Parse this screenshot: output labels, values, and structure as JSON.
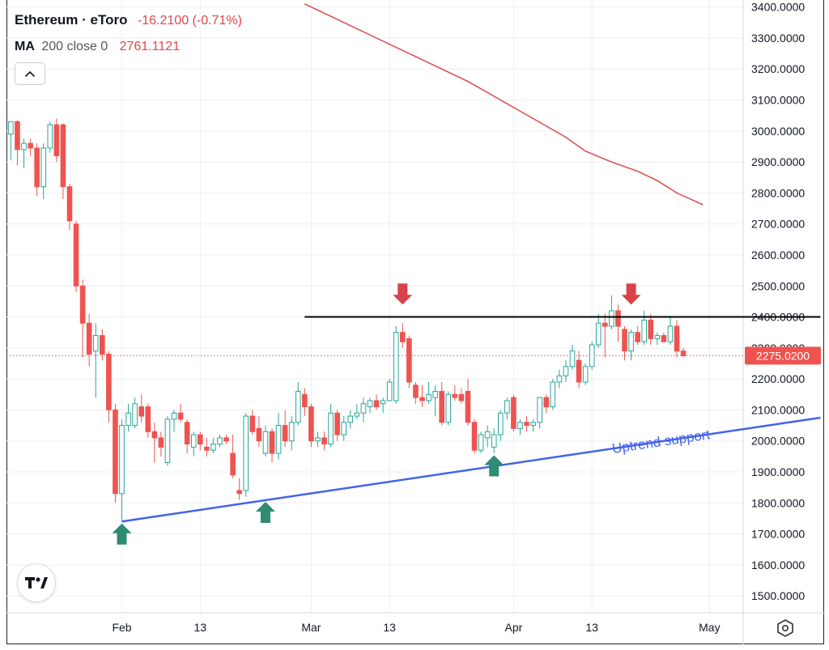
{
  "header": {
    "symbol": "Ethereum · eToro",
    "change": "-16.2100 (-0.71%)",
    "ma_label": "MA",
    "ma_params": "200 close 0",
    "ma_value": "2761.1121"
  },
  "icons": {
    "collapse": "chevron-up-icon",
    "logo": "tradingview-logo-icon",
    "settings": "settings-hexagon-icon"
  },
  "colors": {
    "up": "#26a69a",
    "down": "#ef5350",
    "ma": "#e0474c",
    "support": "#4263eb",
    "resistance": "#000000",
    "price_tag": "#ef5350",
    "arrow_up": "#2e8b74",
    "arrow_down": "#d94249"
  },
  "chart_data": {
    "type": "candlestick",
    "title": "Ethereum · eToro",
    "xlabel": "",
    "ylabel": "",
    "ylim": [
      1440,
      3410
    ],
    "y_ticks": [
      "1500.0000",
      "1600.0000",
      "1700.0000",
      "1800.0000",
      "1900.0000",
      "2000.0000",
      "2100.0000",
      "2200.0000",
      "2300.0000",
      "2400.0000",
      "2500.0000",
      "2600.0000",
      "2700.0000",
      "2800.0000",
      "2900.0000",
      "3000.0000",
      "3100.0000",
      "3200.0000",
      "3300.0000",
      "3400.0000"
    ],
    "x_ticks": [
      {
        "label": "Feb",
        "day": 17
      },
      {
        "label": "13",
        "day": 29
      },
      {
        "label": "Mar",
        "day": 46
      },
      {
        "label": "13",
        "day": 58
      },
      {
        "label": "Apr",
        "day": 77
      },
      {
        "label": "13",
        "day": 89
      },
      {
        "label": "May",
        "day": 107
      }
    ],
    "last_price": "2275.0200",
    "last_price_value": 2275.02,
    "candles": [
      {
        "d": 0,
        "o": 2990,
        "h": 3020,
        "l": 2905,
        "c": 3030
      },
      {
        "d": 1,
        "o": 3030,
        "h": 3035,
        "l": 2890,
        "c": 2940
      },
      {
        "d": 2,
        "o": 2940,
        "h": 2975,
        "l": 2880,
        "c": 2960
      },
      {
        "d": 3,
        "o": 2960,
        "h": 2975,
        "l": 2920,
        "c": 2945
      },
      {
        "d": 4,
        "o": 2945,
        "h": 2960,
        "l": 2790,
        "c": 2820
      },
      {
        "d": 5,
        "o": 2820,
        "h": 2960,
        "l": 2780,
        "c": 2945
      },
      {
        "d": 6,
        "o": 2945,
        "h": 3030,
        "l": 2930,
        "c": 3020
      },
      {
        "d": 7,
        "o": 3020,
        "h": 3040,
        "l": 2900,
        "c": 2920
      },
      {
        "d": 8,
        "o": 3020,
        "h": 3025,
        "l": 2780,
        "c": 2820
      },
      {
        "d": 9,
        "o": 2820,
        "h": 2830,
        "l": 2680,
        "c": 2710
      },
      {
        "d": 10,
        "o": 2700,
        "h": 2710,
        "l": 2480,
        "c": 2500
      },
      {
        "d": 11,
        "o": 2500,
        "h": 2520,
        "l": 2270,
        "c": 2380
      },
      {
        "d": 12,
        "o": 2380,
        "h": 2410,
        "l": 2240,
        "c": 2280
      },
      {
        "d": 13,
        "o": 2290,
        "h": 2380,
        "l": 2140,
        "c": 2340
      },
      {
        "d": 14,
        "o": 2340,
        "h": 2360,
        "l": 2260,
        "c": 2280
      },
      {
        "d": 15,
        "o": 2280,
        "h": 2290,
        "l": 2060,
        "c": 2100
      },
      {
        "d": 16,
        "o": 2100,
        "h": 2120,
        "l": 1800,
        "c": 1830
      },
      {
        "d": 17,
        "o": 1830,
        "h": 2070,
        "l": 1740,
        "c": 2050
      },
      {
        "d": 18,
        "o": 2050,
        "h": 2120,
        "l": 2030,
        "c": 2090
      },
      {
        "d": 19,
        "o": 2050,
        "h": 2140,
        "l": 2040,
        "c": 2120
      },
      {
        "d": 20,
        "o": 2110,
        "h": 2150,
        "l": 2060,
        "c": 2080
      },
      {
        "d": 21,
        "o": 2110,
        "h": 2120,
        "l": 2010,
        "c": 2030
      },
      {
        "d": 22,
        "o": 2030,
        "h": 2060,
        "l": 1930,
        "c": 2010
      },
      {
        "d": 23,
        "o": 2010,
        "h": 2030,
        "l": 1950,
        "c": 1980
      },
      {
        "d": 24,
        "o": 1930,
        "h": 2080,
        "l": 1920,
        "c": 2070
      },
      {
        "d": 25,
        "o": 2070,
        "h": 2100,
        "l": 2030,
        "c": 2090
      },
      {
        "d": 26,
        "o": 2090,
        "h": 2120,
        "l": 2060,
        "c": 2070
      },
      {
        "d": 27,
        "o": 2060,
        "h": 2070,
        "l": 1960,
        "c": 1990
      },
      {
        "d": 28,
        "o": 1980,
        "h": 2030,
        "l": 1950,
        "c": 2020
      },
      {
        "d": 29,
        "o": 2020,
        "h": 2030,
        "l": 1970,
        "c": 1990
      },
      {
        "d": 30,
        "o": 1980,
        "h": 2010,
        "l": 1950,
        "c": 1970
      },
      {
        "d": 31,
        "o": 1970,
        "h": 2010,
        "l": 1960,
        "c": 1990
      },
      {
        "d": 32,
        "o": 1990,
        "h": 2020,
        "l": 1980,
        "c": 2010
      },
      {
        "d": 33,
        "o": 2010,
        "h": 2020,
        "l": 1990,
        "c": 2000
      },
      {
        "d": 34,
        "o": 1960,
        "h": 2020,
        "l": 1880,
        "c": 1890
      },
      {
        "d": 35,
        "o": 1840,
        "h": 1880,
        "l": 1810,
        "c": 1830
      },
      {
        "d": 36,
        "o": 1840,
        "h": 2090,
        "l": 1820,
        "c": 2080
      },
      {
        "d": 37,
        "o": 2080,
        "h": 2100,
        "l": 2020,
        "c": 2030
      },
      {
        "d": 38,
        "o": 2040,
        "h": 2080,
        "l": 1980,
        "c": 2000
      },
      {
        "d": 39,
        "o": 1960,
        "h": 2050,
        "l": 1950,
        "c": 2030
      },
      {
        "d": 40,
        "o": 2030,
        "h": 2040,
        "l": 1930,
        "c": 1960
      },
      {
        "d": 41,
        "o": 1960,
        "h": 2090,
        "l": 1940,
        "c": 2050
      },
      {
        "d": 42,
        "o": 2050,
        "h": 2100,
        "l": 1980,
        "c": 2000
      },
      {
        "d": 43,
        "o": 2000,
        "h": 2080,
        "l": 1970,
        "c": 2060
      },
      {
        "d": 44,
        "o": 2060,
        "h": 2190,
        "l": 2050,
        "c": 2160
      },
      {
        "d": 45,
        "o": 2150,
        "h": 2170,
        "l": 2080,
        "c": 2110
      },
      {
        "d": 46,
        "o": 2110,
        "h": 2120,
        "l": 1980,
        "c": 2000
      },
      {
        "d": 47,
        "o": 2000,
        "h": 2030,
        "l": 1980,
        "c": 2010
      },
      {
        "d": 48,
        "o": 2010,
        "h": 2030,
        "l": 1970,
        "c": 1990
      },
      {
        "d": 49,
        "o": 1990,
        "h": 2120,
        "l": 1980,
        "c": 2090
      },
      {
        "d": 50,
        "o": 2090,
        "h": 2100,
        "l": 2000,
        "c": 2020
      },
      {
        "d": 51,
        "o": 2020,
        "h": 2080,
        "l": 2000,
        "c": 2060
      },
      {
        "d": 52,
        "o": 2060,
        "h": 2100,
        "l": 2040,
        "c": 2080
      },
      {
        "d": 53,
        "o": 2080,
        "h": 2120,
        "l": 2070,
        "c": 2090
      },
      {
        "d": 54,
        "o": 2090,
        "h": 2140,
        "l": 2060,
        "c": 2120
      },
      {
        "d": 55,
        "o": 2110,
        "h": 2140,
        "l": 2090,
        "c": 2130
      },
      {
        "d": 56,
        "o": 2130,
        "h": 2150,
        "l": 2100,
        "c": 2110
      },
      {
        "d": 57,
        "o": 2120,
        "h": 2140,
        "l": 2090,
        "c": 2130
      },
      {
        "d": 58,
        "o": 2130,
        "h": 2200,
        "l": 2130,
        "c": 2190
      },
      {
        "d": 59,
        "o": 2130,
        "h": 2370,
        "l": 2120,
        "c": 2350
      },
      {
        "d": 60,
        "o": 2350,
        "h": 2380,
        "l": 2300,
        "c": 2320
      },
      {
        "d": 61,
        "o": 2330,
        "h": 2340,
        "l": 2170,
        "c": 2190
      },
      {
        "d": 62,
        "o": 2180,
        "h": 2190,
        "l": 2120,
        "c": 2140
      },
      {
        "d": 63,
        "o": 2140,
        "h": 2180,
        "l": 2110,
        "c": 2130
      },
      {
        "d": 64,
        "o": 2130,
        "h": 2190,
        "l": 2120,
        "c": 2150
      },
      {
        "d": 65,
        "o": 2140,
        "h": 2180,
        "l": 2080,
        "c": 2160
      },
      {
        "d": 66,
        "o": 2160,
        "h": 2190,
        "l": 2050,
        "c": 2060
      },
      {
        "d": 67,
        "o": 2060,
        "h": 2160,
        "l": 2050,
        "c": 2150
      },
      {
        "d": 68,
        "o": 2150,
        "h": 2180,
        "l": 2130,
        "c": 2140
      },
      {
        "d": 69,
        "o": 2150,
        "h": 2170,
        "l": 2120,
        "c": 2130
      },
      {
        "d": 70,
        "o": 2160,
        "h": 2200,
        "l": 2050,
        "c": 2060
      },
      {
        "d": 71,
        "o": 2060,
        "h": 2070,
        "l": 1960,
        "c": 1970
      },
      {
        "d": 72,
        "o": 1970,
        "h": 2030,
        "l": 1960,
        "c": 2020
      },
      {
        "d": 73,
        "o": 2010,
        "h": 2050,
        "l": 1980,
        "c": 2030
      },
      {
        "d": 74,
        "o": 1980,
        "h": 2040,
        "l": 1960,
        "c": 2020
      },
      {
        "d": 75,
        "o": 2020,
        "h": 2100,
        "l": 2000,
        "c": 2090
      },
      {
        "d": 76,
        "o": 2090,
        "h": 2140,
        "l": 2070,
        "c": 2130
      },
      {
        "d": 77,
        "o": 2140,
        "h": 2150,
        "l": 2030,
        "c": 2040
      },
      {
        "d": 78,
        "o": 2040,
        "h": 2070,
        "l": 2020,
        "c": 2060
      },
      {
        "d": 79,
        "o": 2060,
        "h": 2080,
        "l": 2030,
        "c": 2050
      },
      {
        "d": 80,
        "o": 2050,
        "h": 2070,
        "l": 2030,
        "c": 2060
      },
      {
        "d": 81,
        "o": 2060,
        "h": 2140,
        "l": 2040,
        "c": 2140
      },
      {
        "d": 82,
        "o": 2140,
        "h": 2150,
        "l": 2090,
        "c": 2110
      },
      {
        "d": 83,
        "o": 2110,
        "h": 2200,
        "l": 2100,
        "c": 2190
      },
      {
        "d": 84,
        "o": 2190,
        "h": 2230,
        "l": 2170,
        "c": 2210
      },
      {
        "d": 85,
        "o": 2210,
        "h": 2260,
        "l": 2190,
        "c": 2240
      },
      {
        "d": 86,
        "o": 2240,
        "h": 2310,
        "l": 2230,
        "c": 2290
      },
      {
        "d": 87,
        "o": 2260,
        "h": 2290,
        "l": 2170,
        "c": 2190
      },
      {
        "d": 88,
        "o": 2190,
        "h": 2250,
        "l": 2180,
        "c": 2240
      },
      {
        "d": 89,
        "o": 2240,
        "h": 2320,
        "l": 2230,
        "c": 2310
      },
      {
        "d": 90,
        "o": 2310,
        "h": 2410,
        "l": 2300,
        "c": 2380
      },
      {
        "d": 91,
        "o": 2380,
        "h": 2410,
        "l": 2270,
        "c": 2370
      },
      {
        "d": 92,
        "o": 2370,
        "h": 2470,
        "l": 2360,
        "c": 2420
      },
      {
        "d": 93,
        "o": 2420,
        "h": 2440,
        "l": 2320,
        "c": 2370
      },
      {
        "d": 94,
        "o": 2360,
        "h": 2370,
        "l": 2260,
        "c": 2290
      },
      {
        "d": 95,
        "o": 2290,
        "h": 2360,
        "l": 2260,
        "c": 2350
      },
      {
        "d": 96,
        "o": 2350,
        "h": 2370,
        "l": 2310,
        "c": 2320
      },
      {
        "d": 97,
        "o": 2320,
        "h": 2420,
        "l": 2310,
        "c": 2390
      },
      {
        "d": 98,
        "o": 2390,
        "h": 2410,
        "l": 2310,
        "c": 2330
      },
      {
        "d": 99,
        "o": 2330,
        "h": 2350,
        "l": 2310,
        "c": 2340
      },
      {
        "d": 100,
        "o": 2340,
        "h": 2350,
        "l": 2320,
        "c": 2320
      },
      {
        "d": 101,
        "o": 2320,
        "h": 2400,
        "l": 2310,
        "c": 2370
      },
      {
        "d": 102,
        "o": 2370,
        "h": 2390,
        "l": 2270,
        "c": 2290
      },
      {
        "d": 103,
        "o": 2290,
        "h": 2300,
        "l": 2270,
        "c": 2275
      }
    ],
    "ma200": {
      "name": "MA 200 close 0",
      "points": [
        [
          45,
          3410
        ],
        [
          50,
          3360
        ],
        [
          55,
          3310
        ],
        [
          60,
          3260
        ],
        [
          65,
          3210
        ],
        [
          70,
          3160
        ],
        [
          75,
          3100
        ],
        [
          80,
          3040
        ],
        [
          85,
          2980
        ],
        [
          88,
          2935
        ],
        [
          92,
          2900
        ],
        [
          96,
          2870
        ],
        [
          99,
          2840
        ],
        [
          102,
          2800
        ],
        [
          106,
          2762
        ]
      ]
    },
    "resistance": {
      "from_day": 45,
      "to_day": 124,
      "price": 2400
    },
    "support": {
      "from_day": 17,
      "to_day": 124,
      "from_price": 1740,
      "to_price": 2075,
      "label": "Uptrend support"
    },
    "markers": [
      {
        "type": "arrow-up",
        "day": 17,
        "price": 1710
      },
      {
        "type": "arrow-up",
        "day": 39,
        "price": 1780
      },
      {
        "type": "arrow-up",
        "day": 74,
        "price": 1930
      },
      {
        "type": "arrow-down",
        "day": 60,
        "price": 2440
      },
      {
        "type": "arrow-down",
        "day": 95,
        "price": 2440
      }
    ]
  }
}
